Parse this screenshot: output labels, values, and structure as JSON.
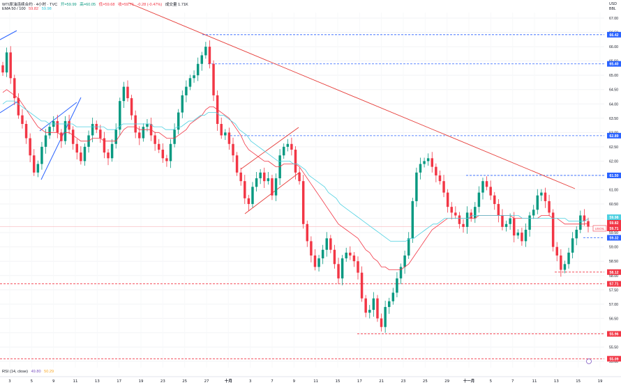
{
  "header": {
    "symbol_line": "WTI原油连续合约 · 4小时 · TVC",
    "open_label": "开=59.99",
    "high_label": "高=60.05",
    "low_label": "低=59.68",
    "close_label": "收=59.71",
    "change_label": "-0.28 (-0.47%)",
    "volume_label": "成交量 1.71K",
    "ema_title": "EMA 50 / 100",
    "ema50_value": "59.82",
    "ema100_value": "59.98"
  },
  "rsi": {
    "title": "RSI (14, close)",
    "value1": "49.80",
    "value2": "50.29"
  },
  "price_axis": {
    "currency": "USD",
    "unit": "BBL",
    "ticks": [
      "67.00",
      "66.50",
      "66.00",
      "65.50",
      "65.00",
      "64.50",
      "64.00",
      "63.50",
      "63.00",
      "62.50",
      "62.00",
      "61.50",
      "61.00",
      "60.50",
      "60.00",
      "59.50",
      "59.00",
      "58.50",
      "58.00",
      "57.50",
      "57.00",
      "56.50",
      "56.00",
      "55.50",
      "55.00"
    ]
  },
  "time_axis": {
    "ticks": [
      "3",
      "5",
      "9",
      "11",
      "13",
      "17",
      "19",
      "23",
      "25",
      "27",
      "十月",
      "3",
      "7",
      "9",
      "11",
      "15",
      "17",
      "21",
      "23",
      "25",
      "29",
      "十一月",
      "5",
      "7",
      "11",
      "13",
      "15",
      "19"
    ]
  },
  "levels": [
    {
      "label": "66.42",
      "value": 66.42,
      "style": "blue"
    },
    {
      "label": "65.40",
      "value": 65.4,
      "style": "blue"
    },
    {
      "label": "62.89",
      "value": 62.89,
      "style": "blue"
    },
    {
      "label": "61.50",
      "value": 61.5,
      "style": "blue"
    },
    {
      "label": "59.32",
      "value": 59.32,
      "style": "blue"
    },
    {
      "label": "58.12",
      "value": 58.12,
      "style": "red"
    },
    {
      "label": "57.71",
      "value": 57.71,
      "style": "red"
    },
    {
      "label": "55.96",
      "value": 55.96,
      "style": "red"
    },
    {
      "label": "55.09",
      "value": 55.09,
      "style": "red"
    }
  ],
  "current_tags": {
    "ema_slow": "59.98",
    "ema_fast": "59.82",
    "symbol": "USOIL",
    "price": "59.71"
  },
  "colors": {
    "up": "#089981",
    "down": "#f23645",
    "ema50": "#f23645",
    "ema100": "#4dd0e1",
    "trend_line": "#e53935",
    "channel": "#2962ff",
    "level_blue": "#2962ff",
    "level_red": "#f23645"
  },
  "chart_data": {
    "type": "line",
    "title": "WTI原油连续合约 · 4小时 · TVC",
    "ylim": [
      54.6,
      67.3
    ],
    "y_scale": "linear",
    "x_labels": [
      "3",
      "5",
      "9",
      "11",
      "13",
      "17",
      "19",
      "23",
      "25",
      "27",
      "十月",
      "3",
      "7",
      "9",
      "11",
      "15",
      "17",
      "21",
      "23",
      "25",
      "29",
      "十一月",
      "5",
      "7",
      "11",
      "13",
      "15",
      "19"
    ],
    "series": [
      {
        "name": "收",
        "values": [
          65.1,
          65.8,
          64.9,
          64.2,
          63.6,
          63.3,
          62.8,
          62.2,
          61.6,
          61.9,
          62.5,
          62.9,
          63.2,
          63.4,
          63.0,
          62.7,
          63.4,
          63.1,
          62.6,
          62.3,
          62.0,
          62.5,
          62.9,
          63.3,
          63.1,
          62.8,
          62.3,
          62.1,
          62.6,
          63.1,
          64.1,
          64.6,
          64.2,
          63.6,
          63.0,
          62.8,
          63.2,
          63.3,
          62.9,
          62.6,
          62.4,
          62.1,
          62.0,
          62.6,
          63.1,
          63.7,
          64.3,
          64.6,
          64.9,
          65.0,
          65.4,
          65.7,
          66.0,
          65.4,
          64.3,
          63.3,
          62.9,
          63.0,
          62.6,
          62.2,
          61.6,
          61.3,
          60.7,
          60.5,
          61.1,
          61.4,
          61.6,
          61.3,
          61.4,
          60.8,
          61.4,
          62.2,
          62.5,
          62.6,
          62.4,
          61.6,
          61.3,
          59.8,
          59.2,
          58.7,
          58.3,
          58.6,
          58.9,
          59.3,
          58.9,
          58.4,
          57.9,
          58.6,
          58.8,
          58.7,
          58.5,
          58.1,
          57.2,
          56.7,
          56.8,
          57.2,
          56.5,
          56.2,
          56.9,
          57.1,
          57.4,
          57.9,
          58.3,
          58.7,
          59.3,
          60.6,
          61.6,
          61.9,
          62.0,
          62.1,
          61.8,
          61.5,
          61.3,
          60.9,
          60.4,
          60.2,
          60.1,
          59.8,
          59.7,
          60.2,
          60.0,
          60.4,
          60.9,
          61.3,
          61.1,
          60.8,
          60.5,
          60.1,
          59.7,
          59.8,
          60.0,
          59.4,
          59.5,
          59.2,
          59.6,
          60.1,
          60.3,
          60.8,
          60.9,
          60.6,
          60.2,
          59.0,
          58.7,
          58.2,
          58.4,
          58.8,
          59.3,
          59.6,
          60.1,
          59.9,
          59.71
        ]
      },
      {
        "name": "EMA 50",
        "values": [
          64.4,
          64.5,
          64.4,
          64.3,
          64.2,
          64.0,
          63.8,
          63.6,
          63.4,
          63.2,
          63.1,
          63.0,
          63.0,
          63.0,
          63.0,
          62.9,
          63.0,
          63.0,
          62.9,
          62.8,
          62.7,
          62.7,
          62.7,
          62.8,
          62.8,
          62.8,
          62.7,
          62.7,
          62.7,
          62.7,
          62.9,
          63.1,
          63.2,
          63.2,
          63.2,
          63.1,
          63.1,
          63.1,
          63.1,
          63.0,
          63.0,
          62.9,
          62.8,
          62.8,
          62.8,
          62.9,
          63.0,
          63.1,
          63.3,
          63.4,
          63.5,
          63.6,
          63.8,
          63.9,
          63.9,
          63.8,
          63.7,
          63.6,
          63.5,
          63.3,
          63.1,
          62.9,
          62.6,
          62.4,
          62.3,
          62.2,
          62.1,
          62.0,
          62.0,
          61.9,
          61.8,
          61.8,
          61.9,
          61.9,
          61.9,
          61.9,
          61.8,
          61.6,
          61.4,
          61.2,
          61.0,
          60.8,
          60.6,
          60.4,
          60.2,
          60.0,
          59.8,
          59.7,
          59.6,
          59.5,
          59.4,
          59.3,
          59.1,
          58.9,
          58.8,
          58.6,
          58.5,
          58.3,
          58.3,
          58.2,
          58.2,
          58.2,
          58.2,
          58.3,
          58.4,
          58.6,
          58.8,
          59.0,
          59.2,
          59.4,
          59.6,
          59.7,
          59.8,
          59.9,
          60.0,
          60.0,
          60.0,
          60.0,
          60.0,
          60.0,
          60.0,
          60.0,
          60.1,
          60.1,
          60.1,
          60.1,
          60.1,
          60.1,
          60.1,
          60.1,
          60.1,
          60.0,
          60.0,
          60.0,
          60.0,
          60.0,
          60.0,
          60.0,
          60.1,
          60.1,
          60.1,
          60.0,
          60.0,
          59.9,
          59.8,
          59.8,
          59.8,
          59.8,
          59.8,
          59.8,
          59.82
        ]
      },
      {
        "name": "EMA 100",
        "values": [
          64.0,
          64.1,
          64.1,
          64.1,
          64.0,
          63.9,
          63.8,
          63.7,
          63.6,
          63.5,
          63.4,
          63.4,
          63.3,
          63.3,
          63.3,
          63.3,
          63.3,
          63.3,
          63.3,
          63.2,
          63.2,
          63.2,
          63.2,
          63.2,
          63.2,
          63.2,
          63.2,
          63.1,
          63.1,
          63.1,
          63.2,
          63.3,
          63.3,
          63.3,
          63.3,
          63.3,
          63.3,
          63.3,
          63.3,
          63.2,
          63.2,
          63.2,
          63.1,
          63.1,
          63.1,
          63.2,
          63.2,
          63.3,
          63.4,
          63.4,
          63.5,
          63.6,
          63.6,
          63.7,
          63.7,
          63.7,
          63.6,
          63.6,
          63.5,
          63.4,
          63.3,
          63.1,
          63.0,
          62.9,
          62.7,
          62.6,
          62.5,
          62.4,
          62.3,
          62.2,
          62.1,
          62.0,
          62.0,
          62.0,
          62.0,
          61.9,
          61.9,
          61.8,
          61.7,
          61.5,
          61.4,
          61.3,
          61.2,
          61.1,
          60.9,
          60.8,
          60.7,
          60.5,
          60.4,
          60.3,
          60.2,
          60.1,
          60.0,
          59.9,
          59.8,
          59.7,
          59.6,
          59.5,
          59.4,
          59.3,
          59.2,
          59.2,
          59.2,
          59.2,
          59.2,
          59.3,
          59.3,
          59.4,
          59.5,
          59.6,
          59.7,
          59.8,
          59.8,
          59.9,
          60.0,
          60.0,
          60.0,
          60.0,
          60.0,
          60.0,
          60.0,
          60.1,
          60.1,
          60.1,
          60.1,
          60.1,
          60.1,
          60.1,
          60.1,
          60.1,
          60.1,
          60.1,
          60.1,
          60.1,
          60.0,
          60.0,
          60.0,
          60.0,
          60.0,
          60.0,
          60.0,
          60.0,
          60.0,
          60.0,
          60.0,
          60.0,
          59.9,
          59.9,
          59.9,
          59.9,
          59.9,
          59.98
        ]
      }
    ]
  }
}
